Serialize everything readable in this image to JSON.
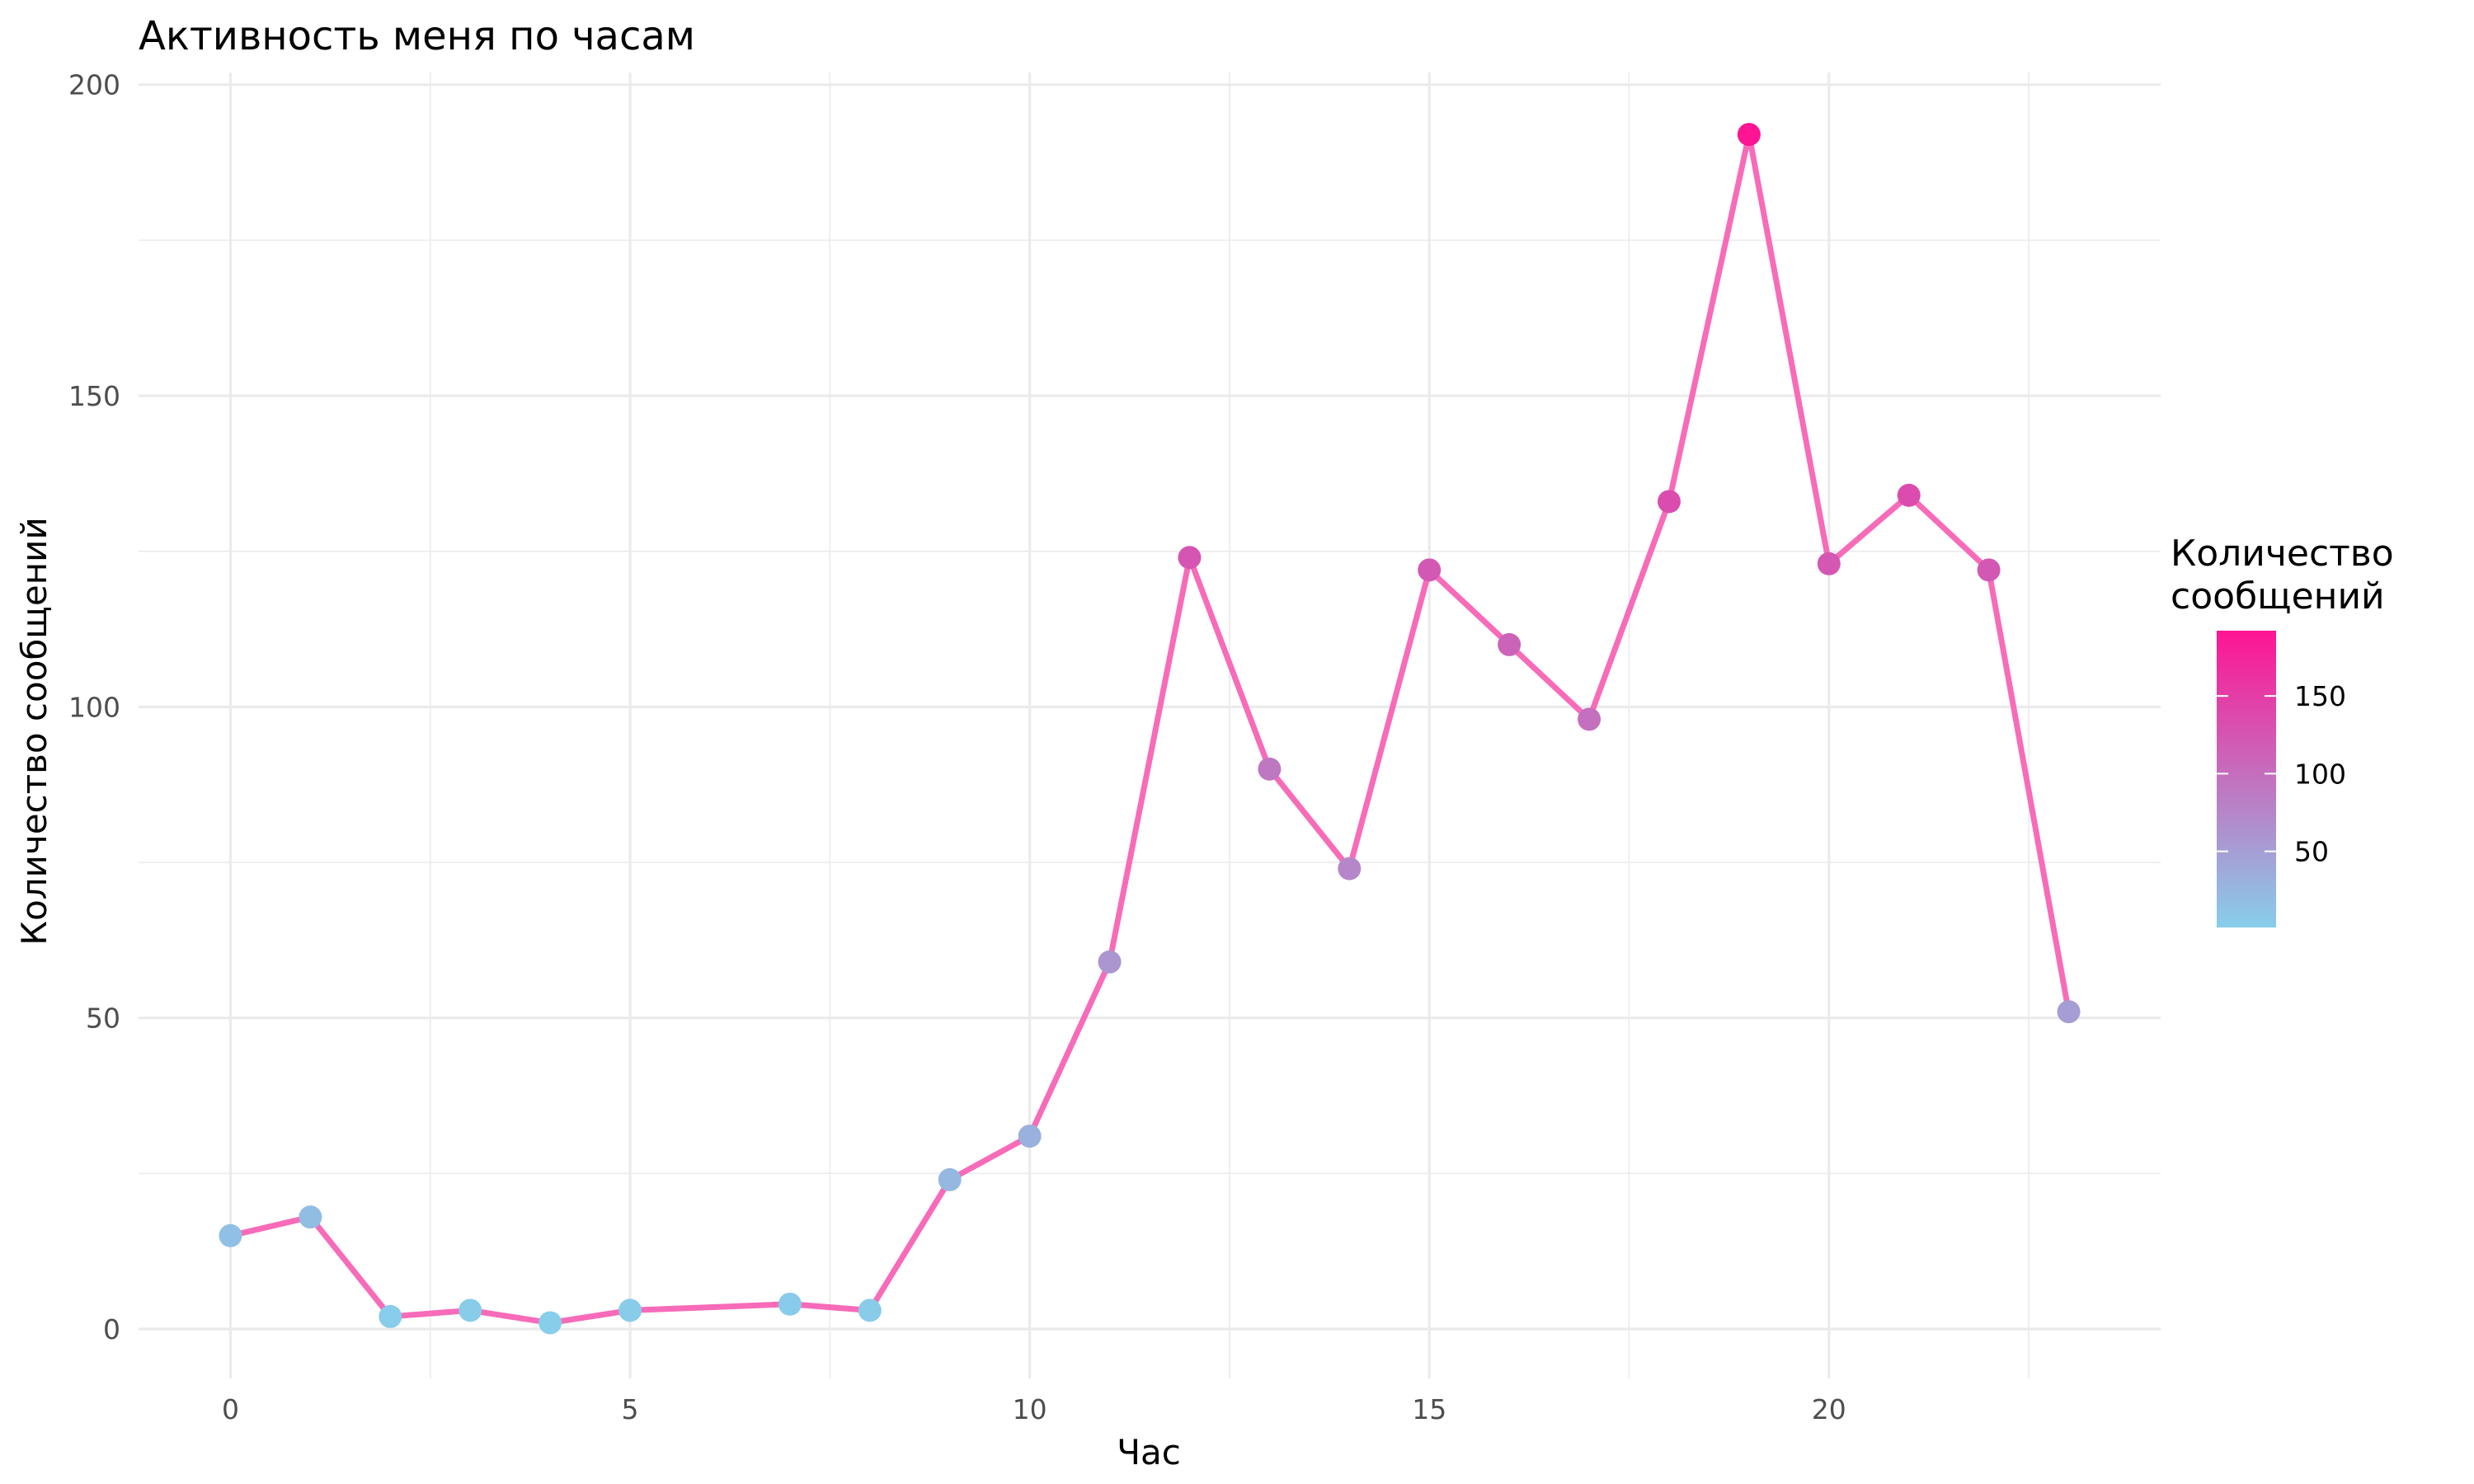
{
  "chart_data": {
    "type": "line",
    "title": "Активность меня по часам",
    "xlabel": "Час",
    "ylabel": "Количество сообщений",
    "xlim": [
      -1.15,
      24.15
    ],
    "ylim": [
      -7.95,
      201.95
    ],
    "x_ticks": [
      0,
      5,
      10,
      15,
      20
    ],
    "y_ticks": [
      0,
      50,
      100,
      150,
      200
    ],
    "grid": true,
    "line_color": "#F76BB9",
    "series": [
      {
        "x": [
          0,
          1,
          2,
          3,
          4,
          5,
          7,
          8,
          9,
          10,
          11,
          12,
          13,
          14,
          15,
          16,
          17,
          18,
          19,
          20,
          21,
          22,
          23
        ],
        "values": [
          15,
          18,
          2,
          3,
          1,
          3,
          4,
          3,
          24,
          31,
          59,
          124,
          90,
          74,
          122,
          110,
          98,
          133,
          192,
          123,
          134,
          122,
          51
        ]
      }
    ],
    "color_scale": {
      "title": [
        "Количество",
        "сообщений"
      ],
      "low": 1,
      "high": 192,
      "colors": [
        "#87CEEB",
        "#FF1493"
      ],
      "ticks": [
        50,
        100,
        150
      ],
      "placement": "right"
    }
  }
}
